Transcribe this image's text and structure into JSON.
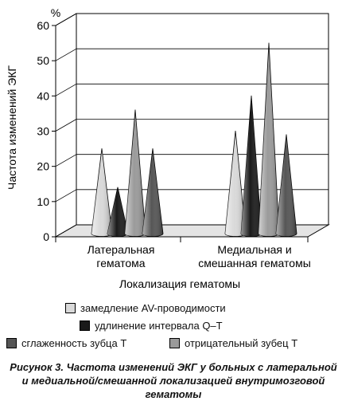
{
  "chart_data": {
    "type": "bar",
    "style": "3d-cone",
    "unit_label": "%",
    "ylabel": "Частота изменений ЭКГ",
    "xlabel": "Локализация гематомы",
    "ylim": [
      0,
      60
    ],
    "yticks": [
      0,
      10,
      20,
      30,
      40,
      50,
      60
    ],
    "grid": true,
    "legend_position": "bottom",
    "categories": [
      "Латеральная гематома",
      "Медиальная и смешанная гематомы"
    ],
    "category_lines": [
      [
        "Латеральная",
        "гематома"
      ],
      [
        "Медиальная и",
        "смешанная гематомы"
      ]
    ],
    "series": [
      {
        "name": "замедление AV-проводимости",
        "color": "#d9d9d9",
        "values": [
          23,
          28
        ]
      },
      {
        "name": "удлинение интервала Q–T",
        "color": "#1a1a1a",
        "values": [
          12,
          38
        ]
      },
      {
        "name": "отрицательный зубец T",
        "color": "#9a9a9a",
        "values": [
          34,
          53
        ]
      },
      {
        "name": "сглаженность зубца T",
        "color": "#555555",
        "values": [
          23,
          27
        ]
      }
    ]
  },
  "legend": [
    {
      "label": "замедление AV-проводимости",
      "color": "#d9d9d9"
    },
    {
      "label": "удлинение интервала Q–T",
      "color": "#1a1a1a"
    },
    {
      "label": "сглаженность зубца T",
      "color": "#555555"
    },
    {
      "label": "отрицательный зубец T",
      "color": "#9a9a9a"
    }
  ],
  "caption": "Рисунок 3. Частота изменений ЭКГ у больных с латеральной и медиальной/смешанной локализацией внутримозговой гематомы"
}
